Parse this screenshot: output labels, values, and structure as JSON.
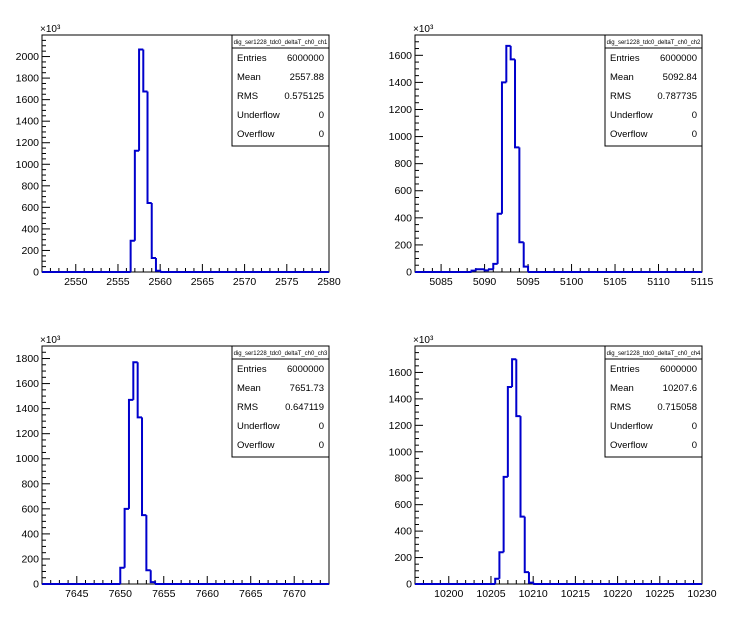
{
  "chart_data": [
    {
      "type": "histogram",
      "title": "dig_ser1228_tdc0_deltaT_ch0_ch1",
      "y_multiplier_label": "×10³",
      "xlim": [
        2546,
        2580
      ],
      "ylim": [
        0,
        2200
      ],
      "x_ticks": [
        2550,
        2555,
        2560,
        2565,
        2570,
        2575,
        2580
      ],
      "y_ticks": [
        0,
        200,
        400,
        600,
        800,
        1000,
        1200,
        1400,
        1600,
        1800,
        2000
      ],
      "bins": [
        {
          "x0": 2556.5,
          "x1": 2557.0,
          "y": 290
        },
        {
          "x0": 2557.0,
          "x1": 2557.5,
          "y": 1125
        },
        {
          "x0": 2557.5,
          "x1": 2558.0,
          "y": 2065
        },
        {
          "x0": 2558.0,
          "x1": 2558.5,
          "y": 1675
        },
        {
          "x0": 2558.5,
          "x1": 2559.0,
          "y": 640
        },
        {
          "x0": 2559.0,
          "x1": 2559.5,
          "y": 130
        },
        {
          "x0": 2559.5,
          "x1": 2560.0,
          "y": 12
        }
      ],
      "stats": [
        {
          "label": "Entries",
          "value": "6000000"
        },
        {
          "label": "Mean",
          "value": "2557.88"
        },
        {
          "label": "RMS",
          "value": "0.575125"
        },
        {
          "label": "Underflow",
          "value": "0"
        },
        {
          "label": "Overflow",
          "value": "0"
        }
      ]
    },
    {
      "type": "histogram",
      "title": "dig_ser1228_tdc0_deltaT_ch0_ch2",
      "y_multiplier_label": "×10³",
      "xlim": [
        5082,
        5115
      ],
      "ylim": [
        0,
        1750
      ],
      "x_ticks": [
        5085,
        5090,
        5095,
        5100,
        5105,
        5110,
        5115
      ],
      "y_ticks": [
        0,
        200,
        400,
        600,
        800,
        1000,
        1200,
        1400,
        1600
      ],
      "bins": [
        {
          "x0": 5088.5,
          "x1": 5089.0,
          "y": 10
        },
        {
          "x0": 5089.0,
          "x1": 5090.0,
          "y": 20
        },
        {
          "x0": 5090.0,
          "x1": 5090.5,
          "y": 12
        },
        {
          "x0": 5090.5,
          "x1": 5091.0,
          "y": 20
        },
        {
          "x0": 5091.0,
          "x1": 5091.5,
          "y": 60
        },
        {
          "x0": 5091.5,
          "x1": 5092.0,
          "y": 430
        },
        {
          "x0": 5092.0,
          "x1": 5092.5,
          "y": 1400
        },
        {
          "x0": 5092.5,
          "x1": 5093.0,
          "y": 1670
        },
        {
          "x0": 5093.0,
          "x1": 5093.5,
          "y": 1570
        },
        {
          "x0": 5093.5,
          "x1": 5094.0,
          "y": 920
        },
        {
          "x0": 5094.0,
          "x1": 5094.5,
          "y": 220
        },
        {
          "x0": 5094.5,
          "x1": 5095.0,
          "y": 40
        }
      ],
      "stats": [
        {
          "label": "Entries",
          "value": "6000000"
        },
        {
          "label": "Mean",
          "value": "5092.84"
        },
        {
          "label": "RMS",
          "value": "0.787735"
        },
        {
          "label": "Underflow",
          "value": "0"
        },
        {
          "label": "Overflow",
          "value": "0"
        }
      ]
    },
    {
      "type": "histogram",
      "title": "dig_ser1228_tdc0_deltaT_ch0_ch3",
      "y_multiplier_label": "×10³",
      "xlim": [
        7641,
        7674
      ],
      "ylim": [
        0,
        1900
      ],
      "x_ticks": [
        7645,
        7650,
        7655,
        7660,
        7665,
        7670
      ],
      "y_ticks": [
        0,
        200,
        400,
        600,
        800,
        1000,
        1200,
        1400,
        1600,
        1800
      ],
      "bins": [
        {
          "x0": 7650.0,
          "x1": 7650.5,
          "y": 130
        },
        {
          "x0": 7650.5,
          "x1": 7651.0,
          "y": 600
        },
        {
          "x0": 7651.0,
          "x1": 7651.5,
          "y": 1470
        },
        {
          "x0": 7651.5,
          "x1": 7652.0,
          "y": 1770
        },
        {
          "x0": 7652.0,
          "x1": 7652.5,
          "y": 1330
        },
        {
          "x0": 7652.5,
          "x1": 7653.0,
          "y": 550
        },
        {
          "x0": 7653.0,
          "x1": 7653.5,
          "y": 110
        },
        {
          "x0": 7653.5,
          "x1": 7654.0,
          "y": 15
        }
      ],
      "stats": [
        {
          "label": "Entries",
          "value": "6000000"
        },
        {
          "label": "Mean",
          "value": "7651.73"
        },
        {
          "label": "RMS",
          "value": "0.647119"
        },
        {
          "label": "Underflow",
          "value": "0"
        },
        {
          "label": "Overflow",
          "value": "0"
        }
      ]
    },
    {
      "type": "histogram",
      "title": "dig_ser1228_tdc0_deltaT_ch0_ch4",
      "y_multiplier_label": "×10³",
      "xlim": [
        10196,
        10230
      ],
      "ylim": [
        0,
        1800
      ],
      "x_ticks": [
        10200,
        10205,
        10210,
        10215,
        10220,
        10225,
        10230
      ],
      "y_ticks": [
        0,
        200,
        400,
        600,
        800,
        1000,
        1200,
        1400,
        1600
      ],
      "bins": [
        {
          "x0": 10205.5,
          "x1": 10206.0,
          "y": 40
        },
        {
          "x0": 10206.0,
          "x1": 10206.5,
          "y": 240
        },
        {
          "x0": 10206.5,
          "x1": 10207.0,
          "y": 810
        },
        {
          "x0": 10207.0,
          "x1": 10207.5,
          "y": 1490
        },
        {
          "x0": 10207.5,
          "x1": 10208.0,
          "y": 1700
        },
        {
          "x0": 10208.0,
          "x1": 10208.5,
          "y": 1270
        },
        {
          "x0": 10208.5,
          "x1": 10209.0,
          "y": 510
        },
        {
          "x0": 10209.0,
          "x1": 10209.5,
          "y": 90
        },
        {
          "x0": 10209.5,
          "x1": 10210.0,
          "y": 10
        }
      ],
      "stats": [
        {
          "label": "Entries",
          "value": "6000000"
        },
        {
          "label": "Mean",
          "value": "10207.6"
        },
        {
          "label": "RMS",
          "value": "0.715058"
        },
        {
          "label": "Underflow",
          "value": "0"
        },
        {
          "label": "Overflow",
          "value": "0"
        }
      ]
    }
  ],
  "colors": {
    "histogram_line": "#0000cc",
    "axis": "#000000",
    "background": "#ffffff"
  }
}
